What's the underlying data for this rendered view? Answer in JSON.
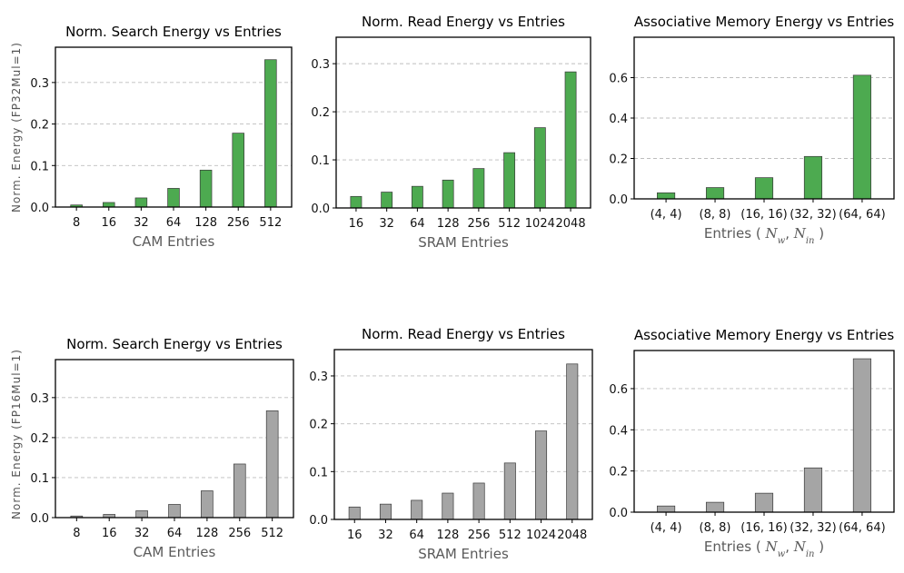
{
  "figure": {
    "rows": [
      {
        "ylabel": "Norm. Energy (FP32Mul=1)",
        "bar_color": "#4daa50",
        "charts": [
          {
            "type": "bar",
            "title": "Norm. Search Energy vs Entries",
            "xlabel": "CAM Entries",
            "categories": [
              "8",
              "16",
              "32",
              "64",
              "128",
              "256",
              "512"
            ],
            "values": [
              0.005,
              0.011,
              0.022,
              0.045,
              0.089,
              0.178,
              0.355
            ],
            "ylim": [
              0,
              0.385
            ],
            "yticks": [
              0.0,
              0.1,
              0.2,
              0.3
            ],
            "ytick_labels": [
              "0.0",
              "0.1",
              "0.2",
              "0.3"
            ],
            "grid": true
          },
          {
            "type": "bar",
            "title": "Norm. Read Energy vs Entries",
            "xlabel": "SRAM Entries",
            "categories": [
              "16",
              "32",
              "64",
              "128",
              "256",
              "512",
              "1024",
              "2048"
            ],
            "values": [
              0.024,
              0.033,
              0.045,
              0.058,
              0.082,
              0.115,
              0.167,
              0.283
            ],
            "ylim": [
              0,
              0.355
            ],
            "yticks": [
              0.0,
              0.1,
              0.2,
              0.3
            ],
            "ytick_labels": [
              "0.0",
              "0.1",
              "0.2",
              "0.3"
            ],
            "grid": true
          },
          {
            "type": "bar",
            "title": "Associative Memory Energy vs Entries",
            "xlabel": "Entries ( N_w, N_in )",
            "categories": [
              "(4, 4)",
              "(8, 8)",
              "(16, 16)",
              "(32, 32)",
              "(64, 64)"
            ],
            "values": [
              0.03,
              0.056,
              0.105,
              0.21,
              0.612
            ],
            "ylim": [
              0,
              0.8
            ],
            "yticks": [
              0.0,
              0.2,
              0.4,
              0.6
            ],
            "ytick_labels": [
              "0.0",
              "0.2",
              "0.4",
              "0.6"
            ],
            "grid": true
          }
        ]
      },
      {
        "ylabel": "Norm. Energy (FP16Mul=1)",
        "bar_color": "#a5a5a5",
        "charts": [
          {
            "type": "bar",
            "title": "Norm. Search Energy vs Entries",
            "xlabel": "CAM Entries",
            "categories": [
              "8",
              "16",
              "32",
              "64",
              "128",
              "256",
              "512"
            ],
            "values": [
              0.004,
              0.008,
              0.017,
              0.033,
              0.067,
              0.134,
              0.267
            ],
            "ylim": [
              0,
              0.395
            ],
            "yticks": [
              0.0,
              0.1,
              0.2,
              0.3
            ],
            "ytick_labels": [
              "0.0",
              "0.1",
              "0.2",
              "0.3"
            ],
            "grid": true
          },
          {
            "type": "bar",
            "title": "Norm. Read Energy vs Entries",
            "xlabel": "SRAM Entries",
            "categories": [
              "16",
              "32",
              "64",
              "128",
              "256",
              "512",
              "1024",
              "2048"
            ],
            "values": [
              0.026,
              0.032,
              0.04,
              0.055,
              0.076,
              0.118,
              0.185,
              0.325
            ],
            "ylim": [
              0,
              0.355
            ],
            "yticks": [
              0.0,
              0.1,
              0.2,
              0.3
            ],
            "ytick_labels": [
              "0.0",
              "0.1",
              "0.2",
              "0.3"
            ],
            "grid": true
          },
          {
            "type": "bar",
            "title": "Associative Memory Energy vs Entries",
            "xlabel": "Entries ( N_w, N_in )",
            "categories": [
              "(4, 4)",
              "(8, 8)",
              "(16, 16)",
              "(32, 32)",
              "(64, 64)"
            ],
            "values": [
              0.03,
              0.048,
              0.092,
              0.215,
              0.745
            ],
            "ylim": [
              0,
              0.785
            ],
            "yticks": [
              0.0,
              0.2,
              0.4,
              0.6
            ],
            "ytick_labels": [
              "0.0",
              "0.2",
              "0.4",
              "0.6"
            ],
            "grid": true
          }
        ]
      }
    ]
  }
}
